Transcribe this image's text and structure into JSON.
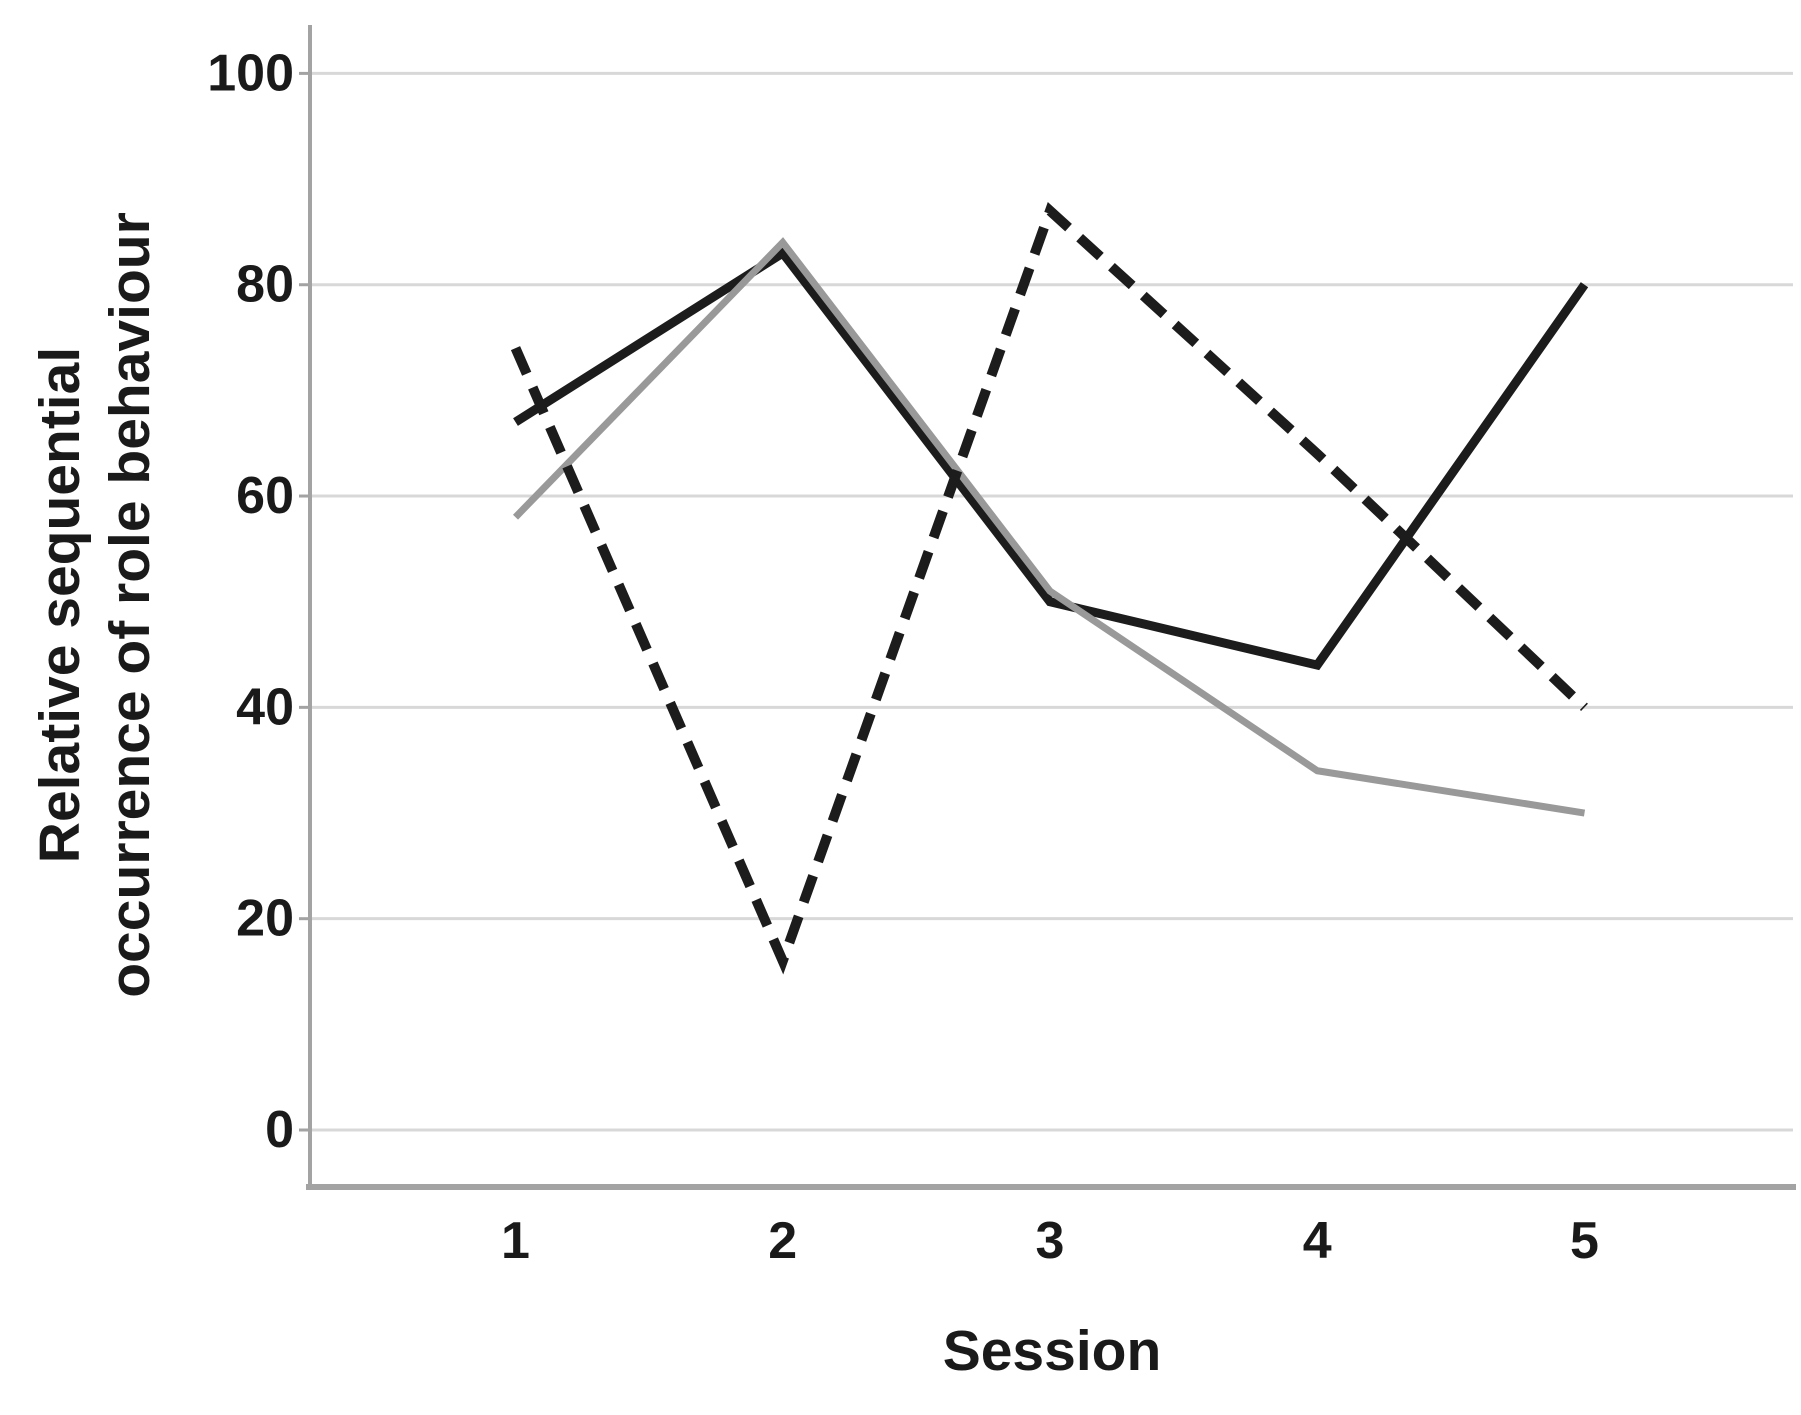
{
  "figure": {
    "background": "#ffffff",
    "y_axis": {
      "title_lines": [
        "Relative sequential",
        "occurrence of role behaviour"
      ],
      "tick_labels": [
        "0",
        "20",
        "40",
        "60",
        "80",
        "100"
      ]
    },
    "x_axis": {
      "title": "Session",
      "tick_labels": [
        "1",
        "2",
        "3",
        "4",
        "5"
      ]
    },
    "colors": {
      "black_line": "#1c1c1c",
      "gray_line": "#999999",
      "gridline": "#d8d8d8",
      "spine": "#a3a3a3",
      "text": "#1a1a1a"
    }
  },
  "chart_data": {
    "type": "line",
    "title": "",
    "xlabel": "Session",
    "ylabel": "Relative sequential occurrence of role behaviour",
    "x": [
      1,
      2,
      3,
      4,
      5
    ],
    "ylim": [
      0,
      100
    ],
    "y_ticks": [
      0,
      20,
      40,
      60,
      80,
      100
    ],
    "grid": "horizontal gridlines only",
    "legend": "none",
    "series": [
      {
        "id": "solid-black-line",
        "name": "solid black line",
        "style": "solid",
        "color": "#1c1c1c",
        "stroke_width": 9,
        "values": [
          67,
          83,
          50,
          44,
          80
        ]
      },
      {
        "id": "solid-gray-line",
        "name": "solid gray line",
        "style": "solid",
        "color": "#999999",
        "stroke_width": 7,
        "values": [
          58,
          84,
          51,
          34,
          30
        ]
      },
      {
        "id": "dashed-black-line",
        "name": "dashed black line",
        "style": "dashed",
        "color": "#1c1c1c",
        "stroke_width": 10,
        "dash": [
          28,
          15
        ],
        "values": [
          74,
          16,
          87,
          64,
          40
        ]
      }
    ]
  }
}
